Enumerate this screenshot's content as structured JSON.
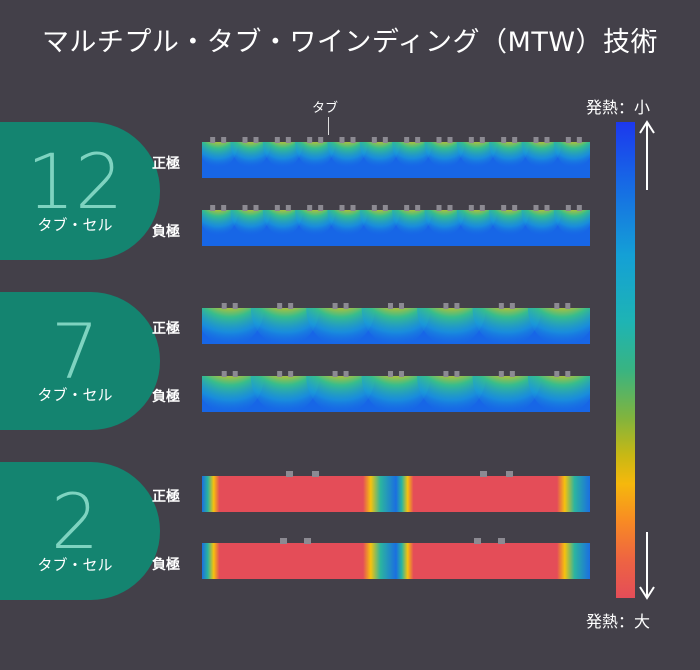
{
  "title": "マルチプル・タブ・ワインディング（MTW）技術",
  "tab_callout": "タブ",
  "colorbar": {
    "top_label": "発熱：小",
    "bottom_label": "発熱：大"
  },
  "groups": [
    {
      "number": "12",
      "subtitle": "タブ・セル",
      "tabs": 12,
      "rows": [
        {
          "label": "正極"
        },
        {
          "label": "負極"
        }
      ]
    },
    {
      "number": "7",
      "subtitle": "タブ・セル",
      "tabs": 7,
      "rows": [
        {
          "label": "正極"
        },
        {
          "label": "負極"
        }
      ]
    },
    {
      "number": "2",
      "subtitle": "タブ・セル",
      "tabs": 2,
      "rows": [
        {
          "label": "正極"
        },
        {
          "label": "負極"
        }
      ]
    }
  ],
  "colors": {
    "background": "#434049",
    "pill": "#148470",
    "number": "#7ed3c0"
  }
}
